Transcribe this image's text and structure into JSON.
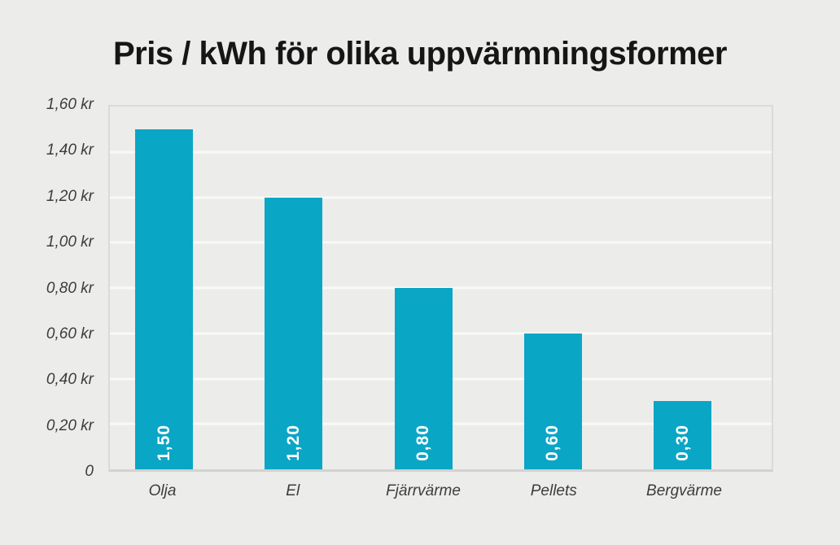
{
  "page": {
    "background_color": "#ECECEA"
  },
  "chart_data": {
    "type": "bar",
    "title": "Pris / kWh för olika uppvärmningsformer",
    "categories": [
      "Olja",
      "El",
      "Fjärrvärme",
      "Pellets",
      "Bergvärme"
    ],
    "values": [
      1.5,
      1.2,
      0.8,
      0.6,
      0.3
    ],
    "value_labels": [
      "1,50",
      "1,20",
      "0,80",
      "0,60",
      "0,30"
    ],
    "unit": "kr",
    "xlabel": "",
    "ylabel": "",
    "ylim": [
      0,
      1.6
    ],
    "y_tick_step": 0.2,
    "y_ticks": [
      {
        "value": 1.6,
        "label": "1,60 kr"
      },
      {
        "value": 1.4,
        "label": "1,40 kr"
      },
      {
        "value": 1.2,
        "label": "1,20 kr"
      },
      {
        "value": 1.0,
        "label": "1,00 kr"
      },
      {
        "value": 0.8,
        "label": "0,80 kr"
      },
      {
        "value": 0.6,
        "label": "0,60 kr"
      },
      {
        "value": 0.4,
        "label": "0,40 kr"
      },
      {
        "value": 0.2,
        "label": "0,20 kr"
      },
      {
        "value": 0.0,
        "label": "0"
      }
    ],
    "grid": true,
    "legend": false,
    "bar_color": "#0AA6C6",
    "value_label_color": "#FFFFFF",
    "gridline_color": "#F9F9F7",
    "tick_label_color": "#3C3C3C",
    "title_color": "#161616"
  }
}
